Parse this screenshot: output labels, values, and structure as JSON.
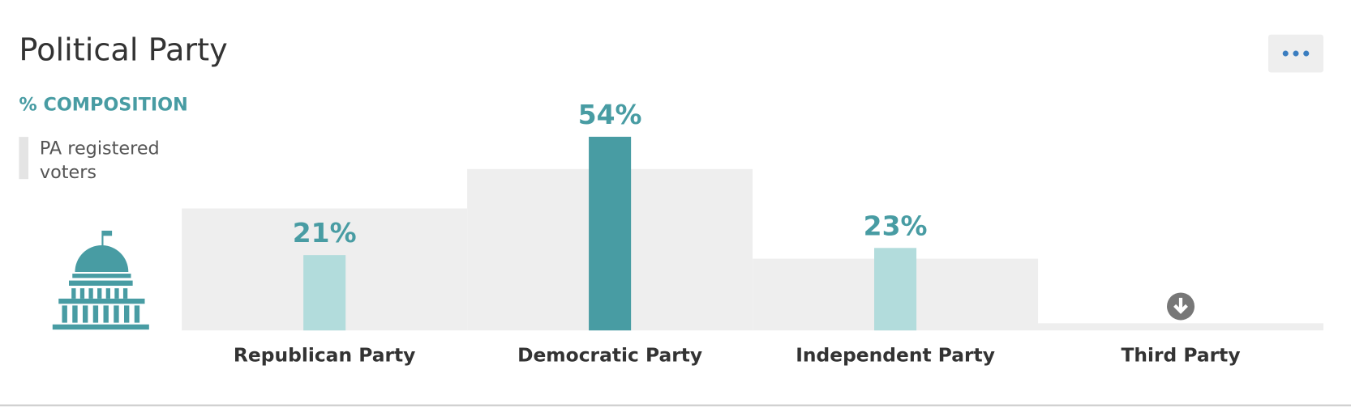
{
  "chart_data": {
    "type": "bar",
    "title": "Political Party",
    "subtitle": "% COMPOSITION",
    "categories": [
      "Republican Party",
      "Democratic Party",
      "Independent Party",
      "Third Party"
    ],
    "values": [
      21,
      54,
      23,
      null
    ],
    "value_labels": [
      "21%",
      "54%",
      "23%",
      null
    ],
    "colors": [
      "#b2dcdc",
      "#489ca3",
      "#b2dcdc",
      "#b2dcdc"
    ],
    "benchmark": {
      "name": "PA registered voters",
      "color": "#eeeeee",
      "values": [
        34,
        45,
        20,
        2
      ]
    }
  }
}
